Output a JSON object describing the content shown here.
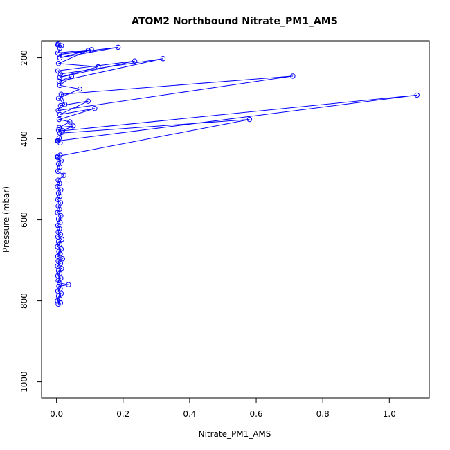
{
  "chart_data": {
    "type": "line",
    "title": "ATOM2 Northbound Nitrate_PM1_AMS",
    "xlabel": "Nitrate_PM1_AMS",
    "ylabel": "Pressure (mbar)",
    "xlim": [
      -0.045,
      1.12
    ],
    "ylim": [
      1040,
      158
    ],
    "y_reversed": true,
    "x_ticks": [
      0.0,
      0.2,
      0.4,
      0.6,
      0.8,
      1.0
    ],
    "x_tick_labels": [
      "0.0",
      "0.2",
      "0.4",
      "0.6",
      "0.8",
      "1.0"
    ],
    "y_ticks": [
      200,
      400,
      600,
      800,
      1000
    ],
    "y_tick_labels": [
      "200",
      "400",
      "600",
      "800",
      "1000"
    ],
    "grid": false,
    "series": [
      {
        "color": "#0000ff",
        "markers": "open-circle",
        "points": [
          [
            0.005,
            808
          ],
          [
            0.012,
            805
          ],
          [
            0.003,
            800
          ],
          [
            0.01,
            795
          ],
          [
            0.006,
            788
          ],
          [
            0.014,
            782
          ],
          [
            0.004,
            776
          ],
          [
            0.011,
            770
          ],
          [
            0.007,
            764
          ],
          [
            0.036,
            760
          ],
          [
            0.009,
            756
          ],
          [
            0.005,
            750
          ],
          [
            0.013,
            744
          ],
          [
            0.004,
            738
          ],
          [
            0.01,
            732
          ],
          [
            0.006,
            726
          ],
          [
            0.015,
            720
          ],
          [
            0.003,
            714
          ],
          [
            0.012,
            708
          ],
          [
            0.005,
            702
          ],
          [
            0.018,
            696
          ],
          [
            0.004,
            690
          ],
          [
            0.011,
            684
          ],
          [
            0.007,
            678
          ],
          [
            0.014,
            672
          ],
          [
            0.003,
            666
          ],
          [
            0.01,
            660
          ],
          [
            0.006,
            654
          ],
          [
            0.016,
            648
          ],
          [
            0.004,
            642
          ],
          [
            0.012,
            636
          ],
          [
            0.005,
            630
          ],
          [
            0.009,
            622
          ],
          [
            0.004,
            614
          ],
          [
            0.011,
            606
          ],
          [
            0.006,
            598
          ],
          [
            0.013,
            590
          ],
          [
            0.003,
            582
          ],
          [
            0.009,
            574
          ],
          [
            0.005,
            566
          ],
          [
            0.012,
            558
          ],
          [
            0.004,
            550
          ],
          [
            0.01,
            542
          ],
          [
            0.006,
            534
          ],
          [
            0.013,
            526
          ],
          [
            0.003,
            518
          ],
          [
            0.009,
            510
          ],
          [
            0.005,
            502
          ],
          [
            0.022,
            490
          ],
          [
            0.004,
            480
          ],
          [
            0.01,
            470
          ],
          [
            0.006,
            462
          ],
          [
            0.014,
            454
          ],
          [
            0.004,
            446
          ],
          [
            0.011,
            440
          ],
          [
            0.004,
            443
          ],
          [
            0.58,
            352
          ],
          [
            0.01,
            386
          ],
          [
            0.006,
            378
          ],
          [
            0.016,
            384
          ],
          [
            0.008,
            398
          ],
          [
            0.003,
            405
          ],
          [
            0.011,
            410
          ],
          [
            0.005,
            405
          ],
          [
            1.083,
            292
          ],
          [
            0.018,
            380
          ],
          [
            0.05,
            368
          ],
          [
            0.008,
            372
          ],
          [
            0.04,
            358
          ],
          [
            0.008,
            352
          ],
          [
            0.115,
            325
          ],
          [
            0.01,
            340
          ],
          [
            0.095,
            307
          ],
          [
            0.012,
            318
          ],
          [
            0.005,
            330
          ],
          [
            0.71,
            245
          ],
          [
            0.014,
            290
          ],
          [
            0.025,
            315
          ],
          [
            0.006,
            300
          ],
          [
            0.07,
            277
          ],
          [
            0.01,
            268
          ],
          [
            0.045,
            246
          ],
          [
            0.008,
            258
          ],
          [
            0.32,
            202
          ],
          [
            0.012,
            240
          ],
          [
            0.004,
            232
          ],
          [
            0.235,
            208
          ],
          [
            0.01,
            248
          ],
          [
            0.125,
            222
          ],
          [
            0.006,
            214
          ],
          [
            0.095,
            182
          ],
          [
            0.01,
            200
          ],
          [
            0.185,
            174
          ],
          [
            0.008,
            192
          ],
          [
            0.105,
            180
          ],
          [
            0.004,
            188
          ],
          [
            0.015,
            170
          ],
          [
            0.005,
            165
          ],
          [
            0.01,
            176
          ],
          [
            0.004,
            168
          ]
        ]
      }
    ]
  }
}
